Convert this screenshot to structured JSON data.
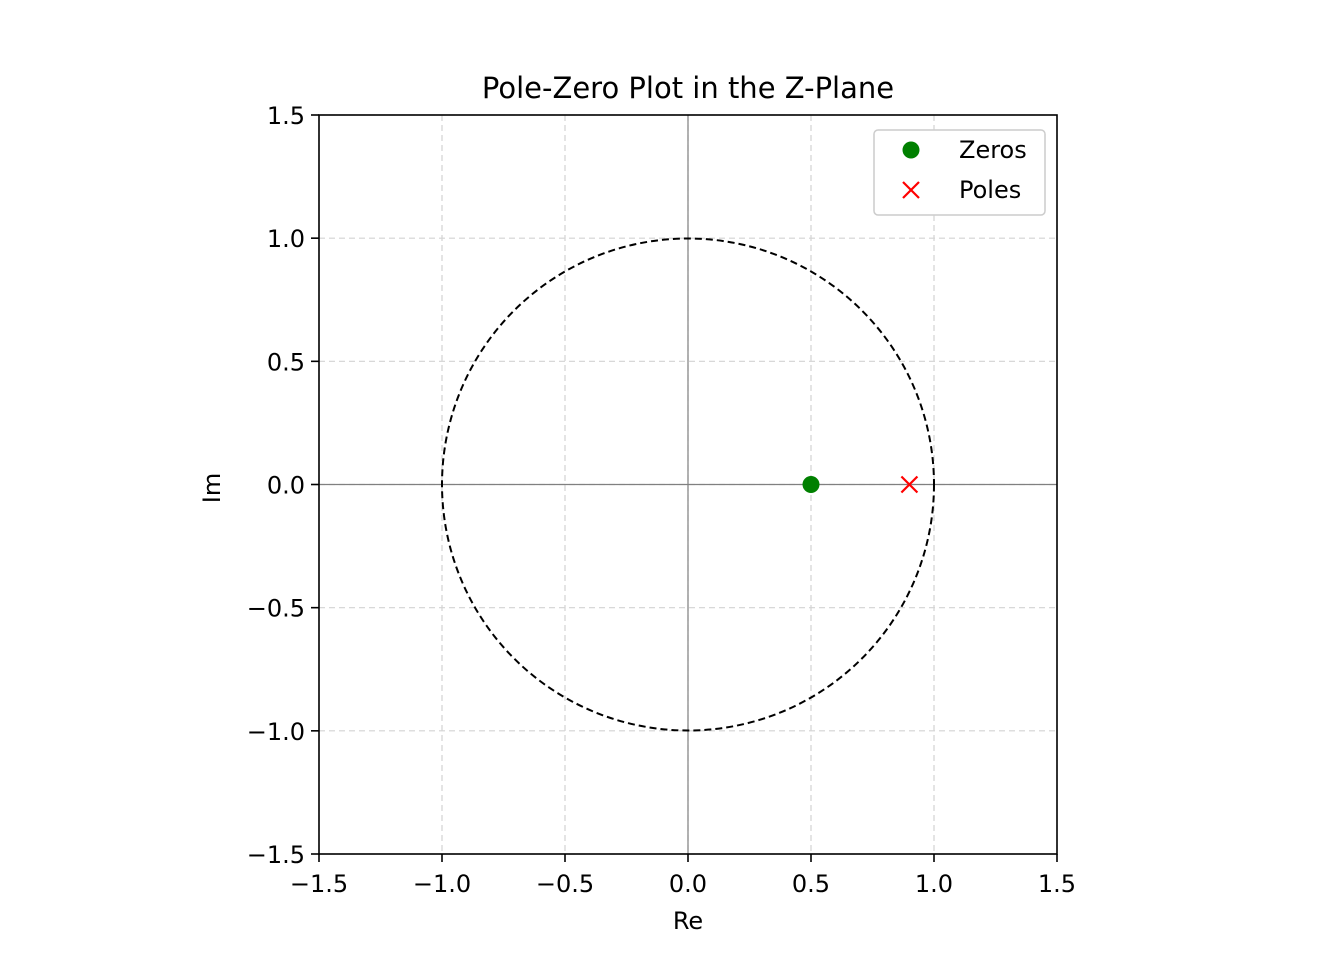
{
  "chart_data": {
    "type": "scatter",
    "title": "Pole-Zero Plot in the Z-Plane",
    "xlabel": "Re",
    "ylabel": "Im",
    "xlim": [
      -1.5,
      1.5
    ],
    "ylim": [
      -1.5,
      1.5
    ],
    "xticks": [
      -1.5,
      -1.0,
      -0.5,
      0.0,
      0.5,
      1.0,
      1.5
    ],
    "yticks": [
      -1.5,
      -1.0,
      -0.5,
      0.0,
      0.5,
      1.0,
      1.5
    ],
    "xtick_labels": [
      "−1.5",
      "−1.0",
      "−0.5",
      "0.0",
      "0.5",
      "1.0",
      "1.5"
    ],
    "ytick_labels": [
      "−1.5",
      "−1.0",
      "−0.5",
      "0.0",
      "0.5",
      "1.0",
      "1.5"
    ],
    "grid": true,
    "unit_circle": {
      "radius": 1,
      "style": "dashed",
      "color": "#000000"
    },
    "series": [
      {
        "name": "Zeros",
        "marker": "circle",
        "color": "#008000",
        "points": [
          {
            "x": 0.5,
            "y": 0.0
          }
        ]
      },
      {
        "name": "Poles",
        "marker": "x",
        "color": "#ff0000",
        "points": [
          {
            "x": 0.9,
            "y": 0.0
          }
        ]
      }
    ],
    "legend": {
      "position": "top-right"
    }
  }
}
